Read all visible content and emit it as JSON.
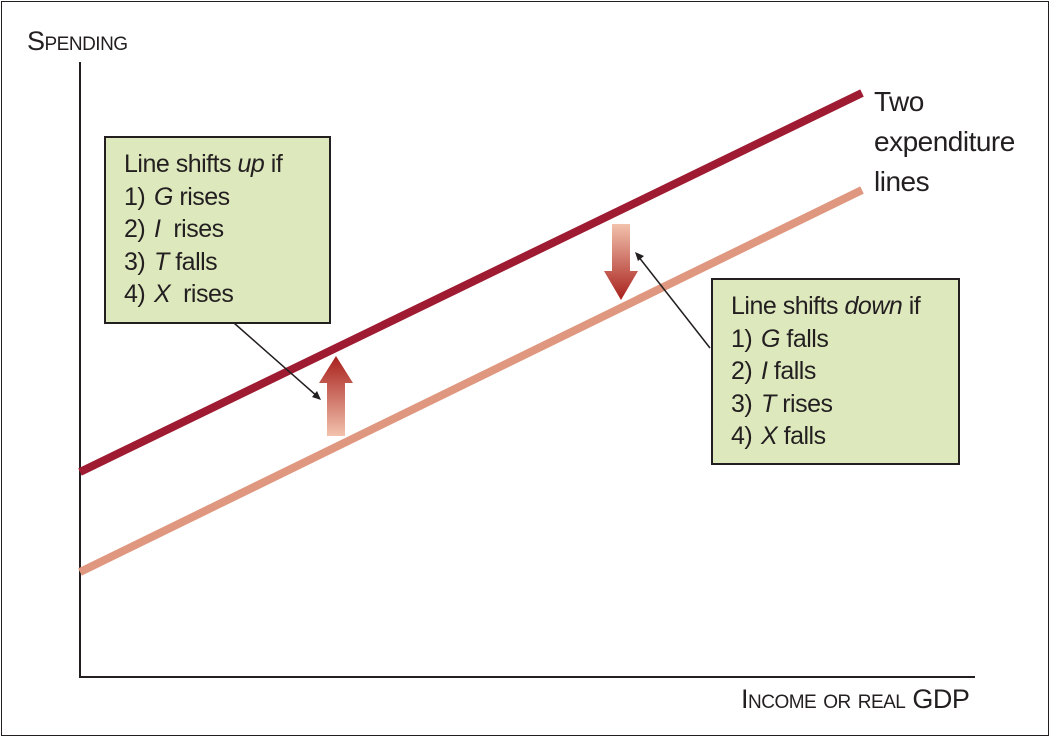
{
  "y_axis_title": "Spending",
  "x_axis_title": "Income or real GDP",
  "line_label": [
    "Two",
    "expenditure",
    "lines"
  ],
  "up_box": {
    "heading_pre": "Line shifts ",
    "heading_em": "up",
    "heading_post": " if",
    "items": [
      {
        "num": "1)",
        "var": "G",
        "text": " rises"
      },
      {
        "num": "2)",
        "var": "I",
        "text": "  rises"
      },
      {
        "num": "3)",
        "var": "T",
        "text": " falls"
      },
      {
        "num": "4)",
        "var": "X",
        "text": "  rises"
      }
    ]
  },
  "down_box": {
    "heading_pre": "Line shifts ",
    "heading_em": "down",
    "heading_post": " if",
    "items": [
      {
        "num": "1)",
        "var": "G",
        "text": " falls"
      },
      {
        "num": "2)",
        "var": "I",
        "text": " falls"
      },
      {
        "num": "3)",
        "var": "T",
        "text": " rises"
      },
      {
        "num": "4)",
        "var": "X",
        "text": " falls"
      }
    ]
  },
  "colors": {
    "upper_line": "#9e1b32",
    "lower_line": "#e0977f",
    "box_fill": "#dde8bd",
    "arrow": "#b8403a"
  }
}
